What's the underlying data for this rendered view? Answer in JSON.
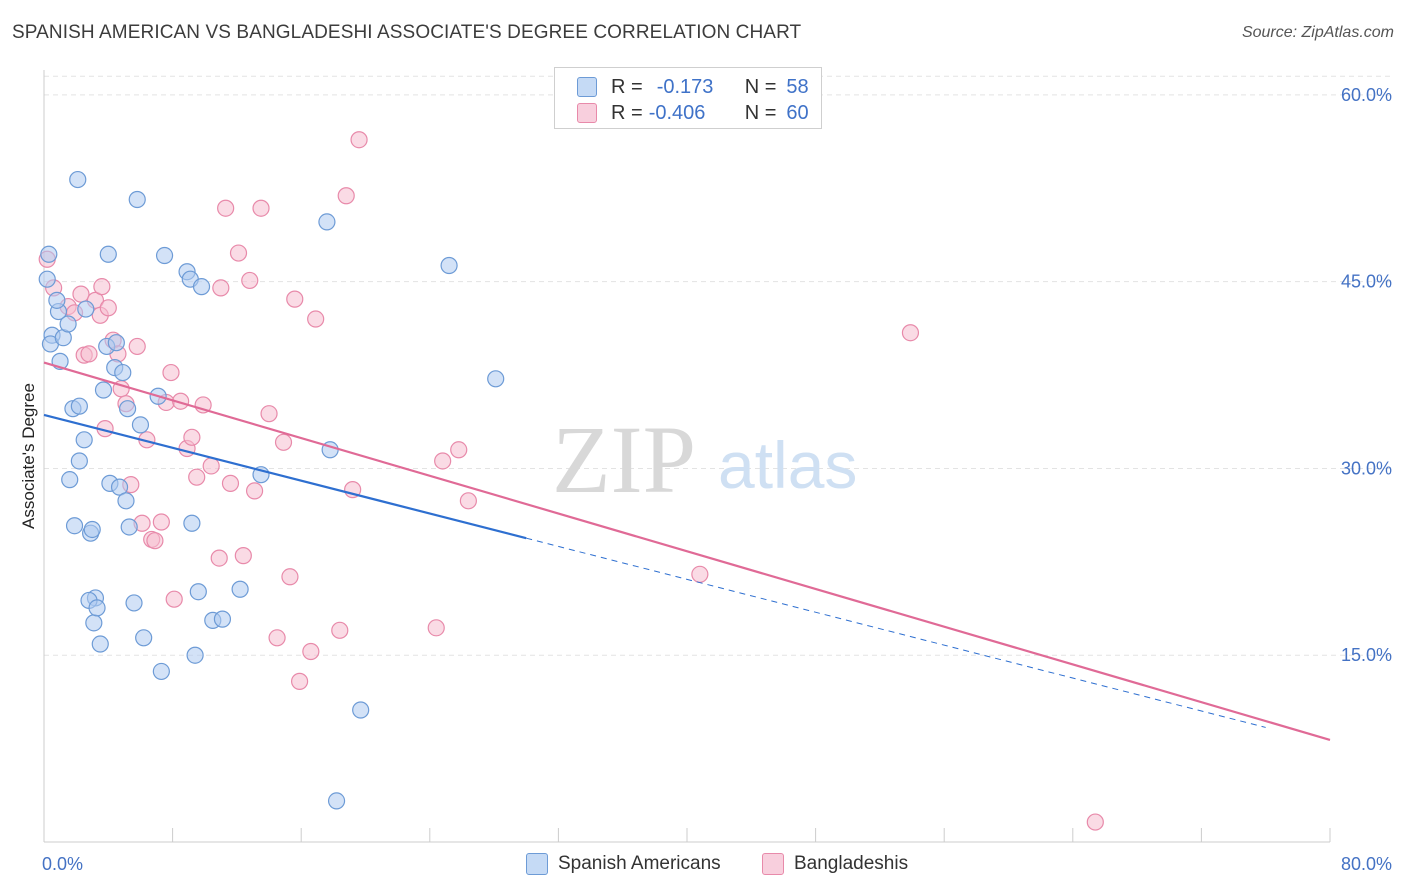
{
  "title": "SPANISH AMERICAN VS BANGLADESHI ASSOCIATE'S DEGREE CORRELATION CHART",
  "source": "Source: ZipAtlas.com",
  "watermark": {
    "zip": "ZIP",
    "atlas": "atlas"
  },
  "colors": {
    "blue_fill": "#aecbf0",
    "blue_stroke": "#6d9bd6",
    "blue_line": "#2e6fd0",
    "pink_fill": "#f6bdd0",
    "pink_stroke": "#e88aaa",
    "pink_line": "#e06a96",
    "grid": "#e3e3e3",
    "tick_text": "#4472c4"
  },
  "legend": {
    "rows": [
      {
        "r_label": "R =",
        "r_value": "-0.173",
        "n_label": "N =",
        "n_value": "58"
      },
      {
        "r_label": "R =",
        "r_value": "-0.406",
        "n_label": "N =",
        "n_value": "60"
      }
    ]
  },
  "bottom_legend": {
    "series1": "Spanish Americans",
    "series2": "Bangladeshis"
  },
  "chart_data": {
    "type": "scatter",
    "title": "SPANISH AMERICAN VS BANGLADESHI ASSOCIATE'S DEGREE CORRELATION CHART",
    "xlabel": "",
    "ylabel": "Associate's Degree",
    "xlim": [
      0,
      80
    ],
    "ylim": [
      0,
      62
    ],
    "x_tick_labels": [
      "0.0%",
      "80.0%"
    ],
    "y_ticks": [
      15,
      30,
      45,
      60
    ],
    "y_tick_labels": [
      "15.0%",
      "30.0%",
      "45.0%",
      "60.0%"
    ],
    "grid": true,
    "series": [
      {
        "name": "Spanish Americans",
        "r": -0.173,
        "n": 58,
        "trend": {
          "x0": 0,
          "y0": 34.3,
          "x1": 30,
          "y1": 24.4,
          "dashed_to_x": 76,
          "dashed_to_y": 9.2
        },
        "points": [
          [
            0.2,
            45.2
          ],
          [
            0.3,
            47.2
          ],
          [
            0.5,
            40.7
          ],
          [
            0.4,
            40.0
          ],
          [
            0.9,
            42.6
          ],
          [
            1.2,
            40.5
          ],
          [
            1.5,
            41.6
          ],
          [
            0.8,
            43.5
          ],
          [
            1.6,
            29.1
          ],
          [
            1.8,
            34.8
          ],
          [
            2.2,
            30.6
          ],
          [
            2.5,
            32.3
          ],
          [
            2.9,
            24.8
          ],
          [
            1.9,
            25.4
          ],
          [
            2.2,
            35.0
          ],
          [
            3.0,
            25.1
          ],
          [
            3.2,
            19.6
          ],
          [
            2.8,
            19.4
          ],
          [
            3.1,
            17.6
          ],
          [
            3.3,
            18.8
          ],
          [
            3.5,
            15.9
          ],
          [
            4.1,
            28.8
          ],
          [
            4.7,
            28.5
          ],
          [
            5.1,
            27.4
          ],
          [
            5.3,
            25.3
          ],
          [
            5.6,
            19.2
          ],
          [
            6.0,
            33.5
          ],
          [
            6.2,
            16.4
          ],
          [
            7.1,
            35.8
          ],
          [
            7.3,
            13.7
          ],
          [
            8.9,
            45.8
          ],
          [
            9.1,
            45.2
          ],
          [
            9.4,
            15.0
          ],
          [
            9.2,
            25.6
          ],
          [
            9.6,
            20.1
          ],
          [
            9.8,
            44.6
          ],
          [
            10.5,
            17.8
          ],
          [
            11.1,
            17.9
          ],
          [
            12.2,
            20.3
          ],
          [
            13.5,
            29.5
          ],
          [
            17.6,
            49.8
          ],
          [
            17.8,
            31.5
          ],
          [
            18.2,
            3.3
          ],
          [
            19.7,
            10.6
          ],
          [
            25.2,
            46.3
          ],
          [
            28.1,
            37.2
          ],
          [
            3.9,
            39.8
          ],
          [
            4.4,
            38.1
          ],
          [
            4.9,
            37.7
          ],
          [
            2.1,
            53.2
          ],
          [
            5.8,
            51.6
          ],
          [
            4.0,
            47.2
          ],
          [
            7.5,
            47.1
          ],
          [
            1.0,
            38.6
          ],
          [
            4.5,
            40.1
          ],
          [
            5.2,
            34.8
          ],
          [
            3.7,
            36.3
          ],
          [
            2.6,
            42.8
          ]
        ]
      },
      {
        "name": "Bangladeshis",
        "r": -0.406,
        "n": 60,
        "trend": {
          "x0": 0,
          "y0": 38.5,
          "x1": 80,
          "y1": 8.2
        },
        "points": [
          [
            0.2,
            46.8
          ],
          [
            0.6,
            44.5
          ],
          [
            1.5,
            43.0
          ],
          [
            1.9,
            42.5
          ],
          [
            2.3,
            44.0
          ],
          [
            2.5,
            39.1
          ],
          [
            2.8,
            39.2
          ],
          [
            3.2,
            43.5
          ],
          [
            3.5,
            42.3
          ],
          [
            3.6,
            44.6
          ],
          [
            3.8,
            33.2
          ],
          [
            4.3,
            40.3
          ],
          [
            4.6,
            39.2
          ],
          [
            4.8,
            36.4
          ],
          [
            5.1,
            35.2
          ],
          [
            5.4,
            28.7
          ],
          [
            5.8,
            39.8
          ],
          [
            6.1,
            25.6
          ],
          [
            6.4,
            32.3
          ],
          [
            6.7,
            24.3
          ],
          [
            6.9,
            24.2
          ],
          [
            7.3,
            25.7
          ],
          [
            7.6,
            35.3
          ],
          [
            7.9,
            37.7
          ],
          [
            8.1,
            19.5
          ],
          [
            8.5,
            35.4
          ],
          [
            8.9,
            31.6
          ],
          [
            9.2,
            32.5
          ],
          [
            9.5,
            29.3
          ],
          [
            9.9,
            35.1
          ],
          [
            10.4,
            30.2
          ],
          [
            10.9,
            22.8
          ],
          [
            11.3,
            50.9
          ],
          [
            11.6,
            28.8
          ],
          [
            12.1,
            47.3
          ],
          [
            12.4,
            23.0
          ],
          [
            12.8,
            45.1
          ],
          [
            13.1,
            28.2
          ],
          [
            13.5,
            50.9
          ],
          [
            14.0,
            34.4
          ],
          [
            14.5,
            16.4
          ],
          [
            14.9,
            32.1
          ],
          [
            15.3,
            21.3
          ],
          [
            15.6,
            43.6
          ],
          [
            15.9,
            12.9
          ],
          [
            16.6,
            15.3
          ],
          [
            16.9,
            42.0
          ],
          [
            18.4,
            17.0
          ],
          [
            18.8,
            51.9
          ],
          [
            19.2,
            28.3
          ],
          [
            19.6,
            56.4
          ],
          [
            24.4,
            17.2
          ],
          [
            24.8,
            30.6
          ],
          [
            25.8,
            31.5
          ],
          [
            26.4,
            27.4
          ],
          [
            40.8,
            21.5
          ],
          [
            53.9,
            40.9
          ],
          [
            65.4,
            1.6
          ],
          [
            11.0,
            44.5
          ],
          [
            4.0,
            42.9
          ]
        ]
      }
    ]
  }
}
